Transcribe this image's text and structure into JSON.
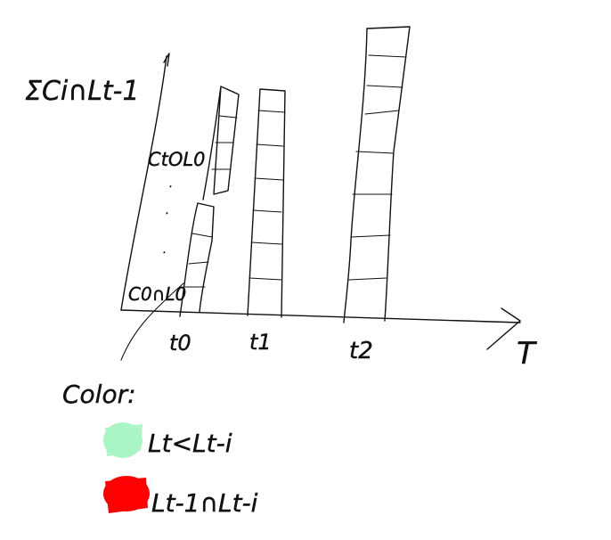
{
  "y_axis_label": "ΣCi∩Lt-1",
  "top_label": "CtOL0",
  "bottom_label": "C0∩L0",
  "x_axis_label": "T",
  "ticks": [
    "t0",
    "t1",
    "t2"
  ],
  "legend": {
    "title": "Color:",
    "items": [
      {
        "swatch_color": "#a9f5c3",
        "label": "Lt<Lt-i"
      },
      {
        "swatch_color": "#ff0000",
        "label": "Lt-1∩Lt-i"
      }
    ]
  }
}
